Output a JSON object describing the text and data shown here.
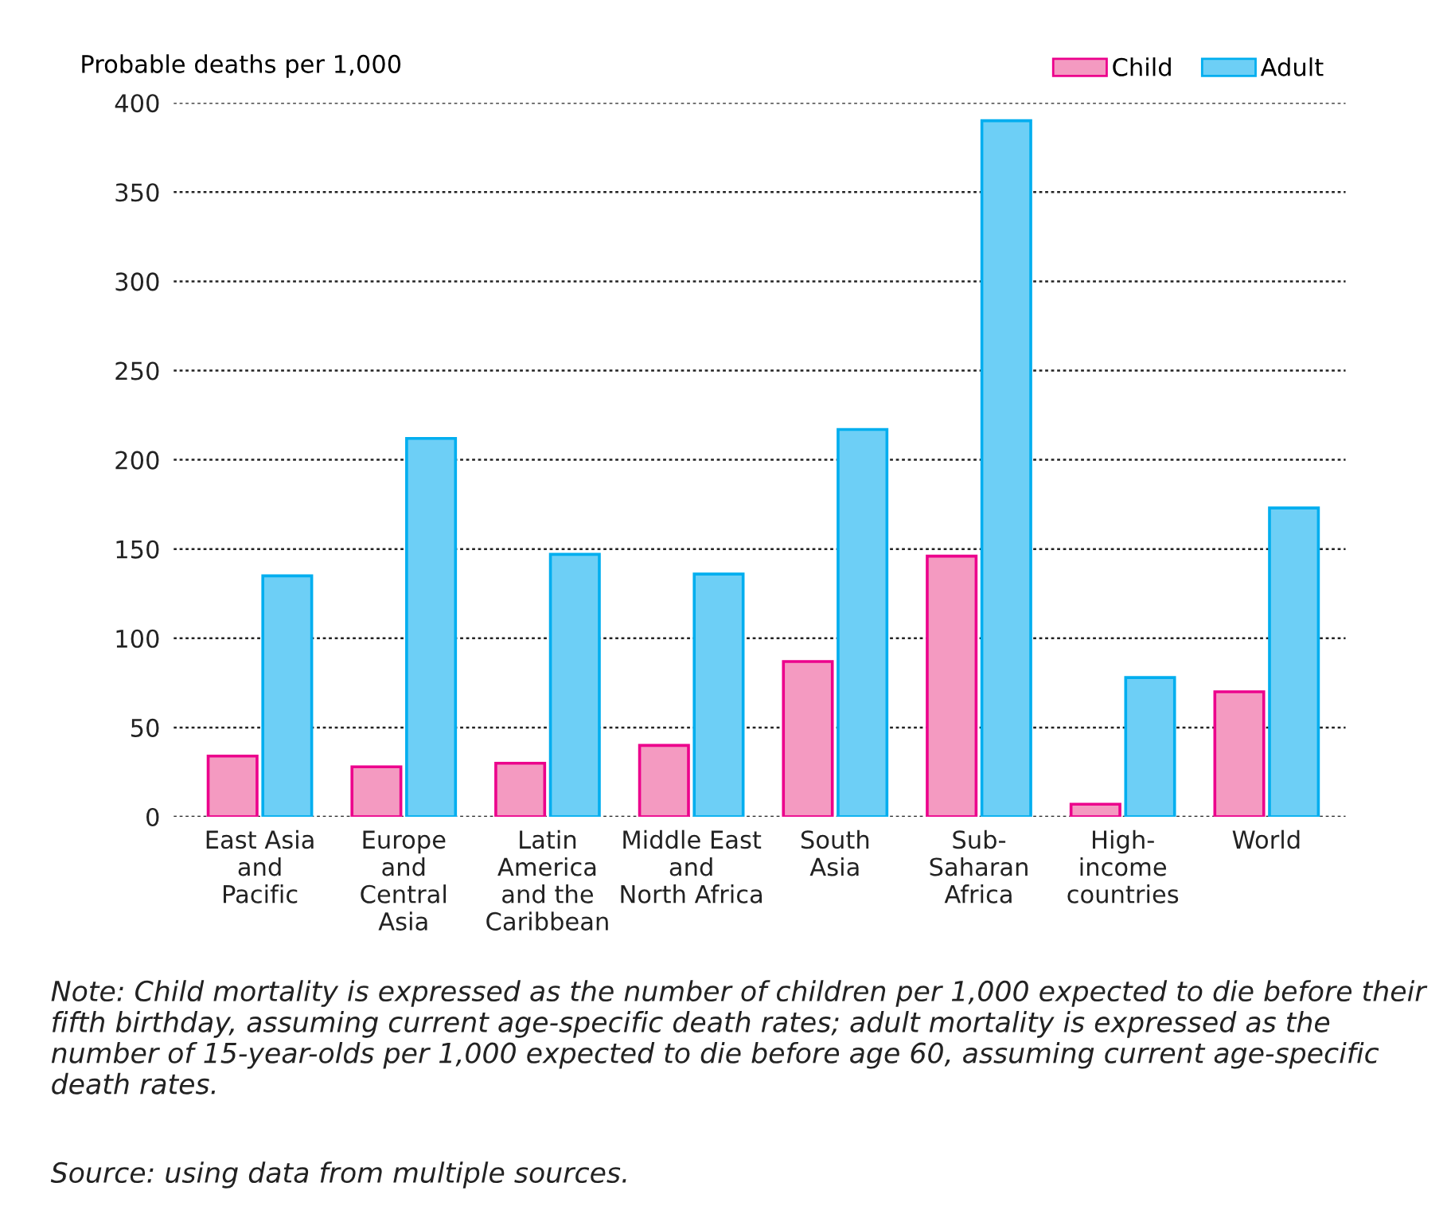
{
  "chart_data": {
    "type": "bar",
    "ylabel": "Probable deaths per 1,000",
    "categories": [
      "East Asia\nand\nPacific",
      "Europe\nand\nCentral\nAsia",
      "Latin\nAmerica\nand the\nCaribbean",
      "Middle East\nand\nNorth Africa",
      "South\nAsia",
      "Sub-\nSaharan\nAfrica",
      "High-\nincome\ncountries",
      "World"
    ],
    "series": [
      {
        "name": "Child",
        "color": "#f49ac1",
        "values": [
          34,
          28,
          30,
          40,
          87,
          146,
          7,
          70
        ]
      },
      {
        "name": "Adult",
        "color": "#6dcff6",
        "values": [
          135,
          212,
          147,
          136,
          217,
          390,
          78,
          173
        ]
      }
    ],
    "ylim": [
      0,
      400
    ],
    "yticks": [
      0,
      50,
      100,
      150,
      200,
      250,
      300,
      350,
      400
    ],
    "grid": "y",
    "legend": "top right",
    "annotations": [
      "Note: Child mortality is expressed as the number of children per 1,000 expected to die before their fifth birthday, assuming current age-specific death rates; adult mortality is expressed as the number of 15-year-olds per 1,000 expected to die before age 60, assuming current age-specific death rates.",
      "Source: using data from multiple sources."
    ]
  }
}
